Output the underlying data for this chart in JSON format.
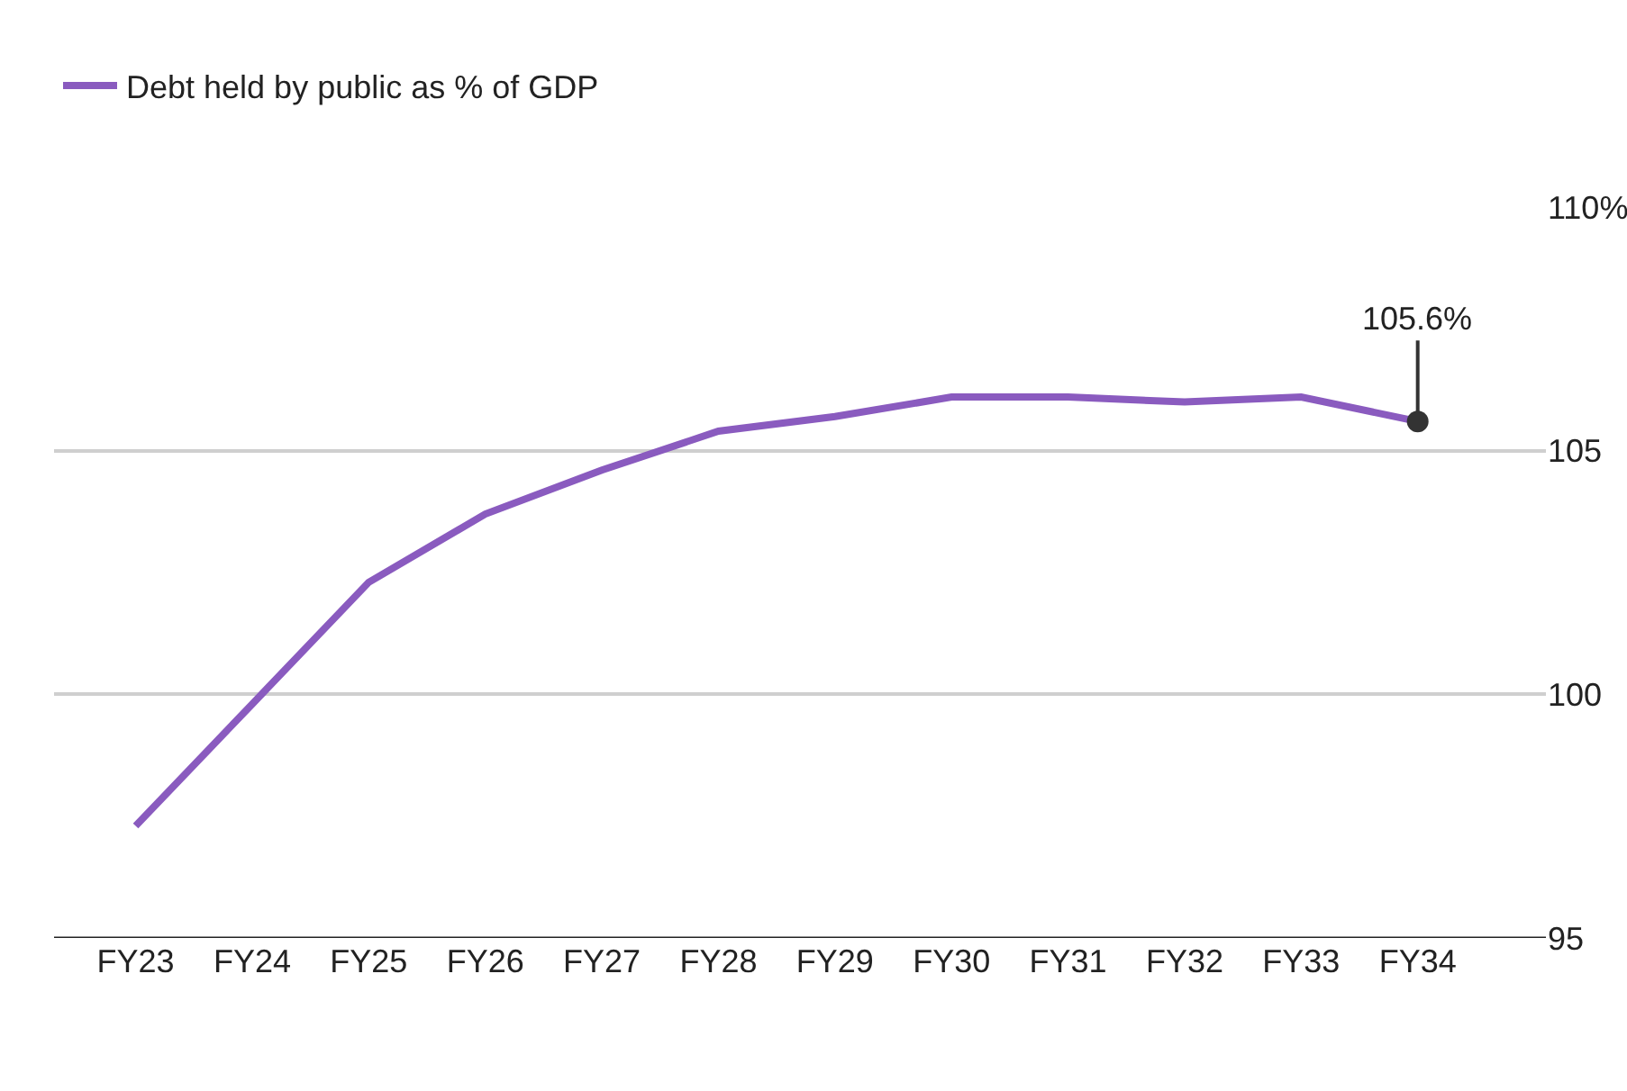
{
  "chart_data": {
    "type": "line",
    "categories": [
      "FY23",
      "FY24",
      "FY25",
      "FY26",
      "FY27",
      "FY28",
      "FY29",
      "FY30",
      "FY31",
      "FY32",
      "FY33",
      "FY34"
    ],
    "series": [
      {
        "name": "Debt held by public as % of GDP",
        "color": "#8a5bbf",
        "values": [
          97.3,
          99.8,
          102.3,
          103.7,
          104.6,
          105.4,
          105.7,
          106.1,
          106.1,
          106.0,
          106.1,
          105.6
        ]
      }
    ],
    "annotations": [
      {
        "text": "105.6%",
        "x": "FY34",
        "y": 105.6
      }
    ],
    "ylim": [
      95,
      110
    ],
    "yticks": [
      {
        "value": 110,
        "label": "110%"
      },
      105,
      100,
      95
    ],
    "grid": "y",
    "legend": "top left",
    "marker": "none",
    "line_style": "solid"
  }
}
